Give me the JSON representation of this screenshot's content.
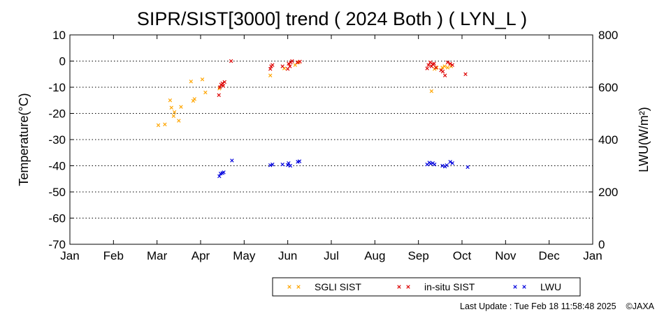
{
  "footer": {
    "last_update": "Last Update : Tue Feb 18 11:58:48 2025",
    "copyright": "©JAXA"
  },
  "chart_data": {
    "type": "scatter",
    "title": "SIPR/SIST[3000] trend ( 2024 Both ) ( LYN_L )",
    "ylabel": "Temperature(°C)",
    "y2label": "LWU(W/m²)",
    "x_domain": [
      0,
      12
    ],
    "ylim": [
      -70,
      10
    ],
    "y2lim": [
      0,
      800
    ],
    "y_ticks": [
      10,
      0,
      -10,
      -20,
      -30,
      -40,
      -50,
      -60,
      -70
    ],
    "y2_ticks": [
      800,
      600,
      400,
      200,
      0
    ],
    "x_tick_labels": [
      "Jan",
      "Feb",
      "Mar",
      "Apr",
      "May",
      "Jun",
      "Jul",
      "Aug",
      "Sep",
      "Oct",
      "Nov",
      "Dec",
      "Jan"
    ],
    "grid": "horizontal-dotted",
    "legend_position": "bottom",
    "legend": [
      "SGLI SIST",
      "in-situ SIST",
      "LWU"
    ],
    "series": [
      {
        "name": "SGLI SIST",
        "axis": "left",
        "color": "#ffa500",
        "x": [
          2.03,
          2.18,
          2.3,
          2.33,
          2.38,
          2.4,
          2.5,
          2.55,
          2.78,
          2.83,
          2.86,
          3.04,
          3.11,
          3.43,
          4.6,
          4.92,
          5.17,
          5.25,
          8.3,
          8.37,
          8.42,
          8.55,
          8.6,
          8.67,
          8.75
        ],
        "y": [
          -24.5,
          -24.2,
          -15.0,
          -17.8,
          -21.0,
          -19.5,
          -22.8,
          -17.5,
          -7.8,
          -15.2,
          -14.5,
          -7.0,
          -12.0,
          -10.5,
          -5.5,
          -2.8,
          -1.5,
          -0.5,
          -11.5,
          -3.0,
          -2.5,
          -2.5,
          -2.0,
          -2.5,
          -2.0
        ]
      },
      {
        "name": "in-situ SIST",
        "axis": "left",
        "color": "#dd0000",
        "x": [
          3.42,
          3.44,
          3.47,
          3.5,
          3.52,
          3.55,
          3.7,
          4.6,
          4.62,
          4.65,
          4.88,
          5.0,
          5.02,
          5.05,
          5.07,
          5.1,
          5.22,
          5.28,
          8.2,
          8.23,
          8.27,
          8.3,
          8.33,
          8.36,
          8.4,
          8.52,
          8.56,
          8.61,
          8.67,
          8.73,
          8.78,
          9.08
        ],
        "y": [
          -13.0,
          -10.0,
          -9.0,
          -8.5,
          -9.5,
          -8.0,
          0.0,
          -3.0,
          -2.0,
          -1.5,
          -2.0,
          -3.0,
          -1.0,
          -2.0,
          -0.5,
          0.0,
          -0.5,
          -0.2,
          -2.8,
          -1.5,
          -0.5,
          -2.0,
          -1.2,
          -1.0,
          -2.5,
          -3.5,
          -4.0,
          -5.5,
          -0.5,
          -1.0,
          -1.5,
          -5.0
        ]
      },
      {
        "name": "LWU",
        "axis": "right",
        "color": "#0000dd",
        "x": [
          3.43,
          3.46,
          3.5,
          3.53,
          3.72,
          4.6,
          4.65,
          4.88,
          5.0,
          5.02,
          5.06,
          5.23,
          5.27,
          8.2,
          8.25,
          8.28,
          8.33,
          8.37,
          8.55,
          8.61,
          8.65,
          8.73,
          8.78,
          9.13
        ],
        "y": [
          260,
          270,
          272,
          275,
          320,
          302,
          305,
          305,
          303,
          310,
          300,
          315,
          317,
          305,
          312,
          308,
          310,
          305,
          300,
          297,
          302,
          315,
          310,
          295
        ]
      }
    ]
  }
}
